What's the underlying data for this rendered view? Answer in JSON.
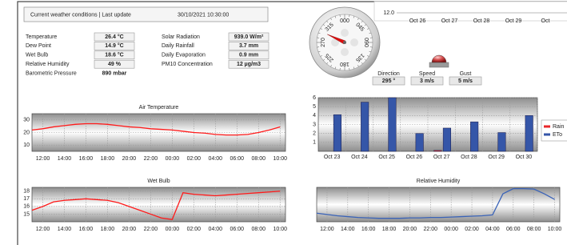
{
  "header": {
    "title": "Current weather conditions | Last update",
    "timestamp": "30/10/2021 10:30:00"
  },
  "readings": {
    "left": [
      {
        "label": "Temperature",
        "value": "26.4 °C"
      },
      {
        "label": "Dew Point",
        "value": "14.9 °C"
      },
      {
        "label": "Wet Bulb",
        "value": "18.6 °C"
      },
      {
        "label": "Relative Humidity",
        "value": "49 %"
      },
      {
        "label": "Barometric Pressure",
        "value": "890 mbar"
      }
    ],
    "right": [
      {
        "label": "Solar Radiation",
        "value": "939.0 W/m²"
      },
      {
        "label": "Daily Rainfall",
        "value": "3.7 mm"
      },
      {
        "label": "Daily Evaporation",
        "value": "0.9 mm"
      },
      {
        "label": "PM10 Concentration",
        "value": "12 µg/m3"
      }
    ]
  },
  "wind": {
    "compass_labels": [
      "000",
      "045",
      "090",
      "135",
      "180",
      "225",
      "270",
      "315"
    ],
    "direction": {
      "label": "Direction",
      "value": 295,
      "value_label": "295 °"
    },
    "speed": {
      "label": "Speed",
      "value": "3 m/s"
    },
    "gust": {
      "label": "Gust",
      "value": "5 m/s"
    }
  },
  "chart_data": [
    {
      "type": "bar",
      "categories": [
        "Oct 26",
        "Oct 27",
        "Oct 28",
        "Oct 29",
        "Oct"
      ],
      "yticks": [
        {
          "value": 12,
          "label": "12.0"
        }
      ]
    },
    {
      "type": "line",
      "title": "Air Temperature",
      "x": [
        11,
        12,
        13,
        14,
        15,
        16,
        17,
        18,
        19,
        20,
        21,
        22,
        23,
        24,
        25,
        26,
        27,
        28,
        29,
        30,
        31,
        32,
        33,
        34
      ],
      "values": [
        22,
        23,
        24.5,
        25.5,
        26.5,
        27,
        27,
        26.5,
        25.5,
        24.5,
        24,
        23,
        22.5,
        22,
        21,
        20,
        19.5,
        18.5,
        18,
        18,
        18.5,
        20,
        22,
        24.5
      ],
      "color": "#ff1a1a",
      "xlim": [
        11,
        34.5
      ],
      "xticks": [
        {
          "value": 12,
          "label": "12:00"
        },
        {
          "value": 14,
          "label": "14:00"
        },
        {
          "value": 16,
          "label": "16:00"
        },
        {
          "value": 18,
          "label": "18:00"
        },
        {
          "value": 20,
          "label": "20:00"
        },
        {
          "value": 22,
          "label": "22:00"
        },
        {
          "value": 24,
          "label": "00:00"
        },
        {
          "value": 26,
          "label": "02:00"
        },
        {
          "value": 28,
          "label": "04:00"
        },
        {
          "value": 30,
          "label": "06:00"
        },
        {
          "value": 32,
          "label": "08:00"
        },
        {
          "value": 34,
          "label": "10:00"
        }
      ],
      "ylim": [
        5,
        35
      ],
      "yticks": [
        10,
        20,
        30
      ],
      "grid": true
    },
    {
      "type": "line",
      "title": "Wet Bulb",
      "x": [
        11,
        12,
        13,
        14,
        15,
        16,
        17,
        18,
        19,
        20,
        21,
        22,
        23,
        24,
        25,
        26,
        27,
        28,
        29,
        30,
        31,
        32,
        33,
        34
      ],
      "values": [
        15.5,
        16,
        16.6,
        16.8,
        16.9,
        17,
        16.9,
        16.8,
        16.5,
        16,
        15.5,
        15,
        14.5,
        14.3,
        17.8,
        17.6,
        17.5,
        17.4,
        17.5,
        17.6,
        17.7,
        17.8,
        17.9,
        18
      ],
      "color": "#ff1a1a",
      "xlim": [
        11,
        34.5
      ],
      "xticks": [
        {
          "value": 12,
          "label": "12:00"
        },
        {
          "value": 14,
          "label": "14:00"
        },
        {
          "value": 16,
          "label": "16:00"
        },
        {
          "value": 18,
          "label": "18:00"
        },
        {
          "value": 20,
          "label": "20:00"
        },
        {
          "value": 22,
          "label": "22:00"
        },
        {
          "value": 24,
          "label": "00:00"
        },
        {
          "value": 26,
          "label": "02:00"
        },
        {
          "value": 28,
          "label": "04:00"
        },
        {
          "value": 30,
          "label": "06:00"
        },
        {
          "value": 32,
          "label": "08:00"
        },
        {
          "value": 34,
          "label": "10:00"
        }
      ],
      "ylim": [
        14,
        18.5
      ],
      "yticks": [
        15,
        16,
        17,
        18
      ],
      "grid": true
    },
    {
      "type": "bar",
      "categories": [
        "Oct 23",
        "Oct 24",
        "Oct 25",
        "Oct 26",
        "Oct 27",
        "Oct 28",
        "Oct 29",
        "Oct 30"
      ],
      "series": [
        {
          "name": "Rain",
          "color": "#e8262a",
          "values": [
            0,
            0,
            0,
            0,
            0.1,
            0,
            0,
            0
          ]
        },
        {
          "name": "ETo",
          "color": "#3556a8",
          "values": [
            4.1,
            5.5,
            6,
            2,
            2.6,
            3.3,
            2.1,
            4
          ]
        }
      ],
      "ylim": [
        0,
        6
      ],
      "yticks": [
        1,
        2,
        3,
        4,
        5,
        6
      ],
      "grid": true,
      "legend": "right"
    },
    {
      "type": "line",
      "title": "Relative Humidity",
      "x": [
        11,
        12,
        13,
        14,
        15,
        16,
        17,
        18,
        19,
        20,
        21,
        22,
        23,
        24,
        25,
        26,
        27,
        28,
        29,
        30,
        31,
        32,
        33,
        34
      ],
      "values": [
        40,
        37,
        34,
        32,
        30,
        29,
        28,
        28,
        28,
        29,
        29,
        30,
        30,
        31,
        32,
        33,
        34,
        36,
        85,
        97,
        97,
        96,
        85,
        72
      ],
      "color": "#3a63b8",
      "xlim": [
        11,
        34.5
      ],
      "xticks": [
        {
          "value": 12,
          "label": "12:00"
        },
        {
          "value": 14,
          "label": "14:00"
        },
        {
          "value": 16,
          "label": "16:00"
        },
        {
          "value": 18,
          "label": "18:00"
        },
        {
          "value": 20,
          "label": "20:00"
        },
        {
          "value": 22,
          "label": "22:00"
        },
        {
          "value": 24,
          "label": "00:00"
        },
        {
          "value": 26,
          "label": "02:00"
        },
        {
          "value": 28,
          "label": "04:00"
        },
        {
          "value": 30,
          "label": "06:00"
        },
        {
          "value": 32,
          "label": "08:00"
        },
        {
          "value": 34,
          "label": "10:00"
        }
      ],
      "ylim": [
        20,
        100
      ],
      "grid": true
    }
  ]
}
